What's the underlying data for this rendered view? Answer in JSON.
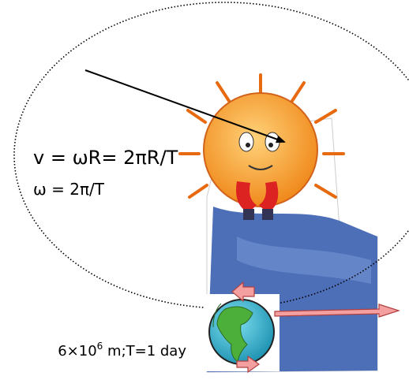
{
  "equations": {
    "velocity": "v = ωR= 2πR/T",
    "angular": "ω = 2π/T"
  },
  "caption": {
    "base": "6×10",
    "exponent": "6",
    "rest": " m;T=1 day"
  }
}
